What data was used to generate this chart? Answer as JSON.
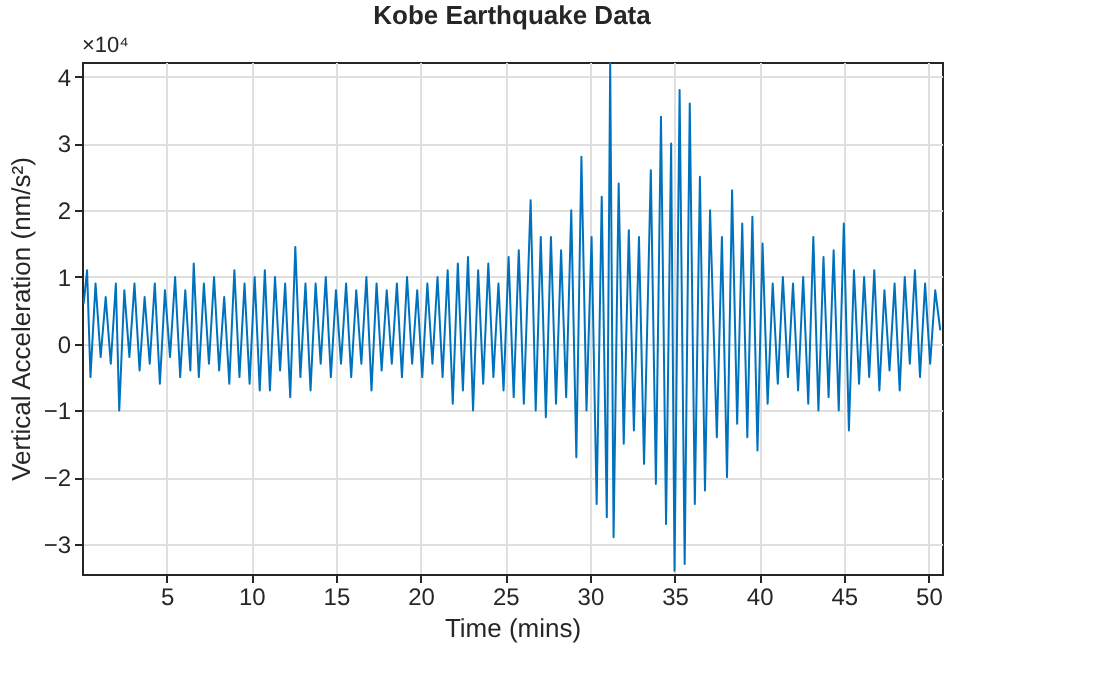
{
  "chart_data": {
    "type": "line",
    "title": "Kobe Earthquake Data",
    "xlabel": "Time (mins)",
    "ylabel": "Vertical Acceleration (nm/s²)",
    "annotations": [
      "×10⁴"
    ],
    "xlim": [
      0,
      50.8
    ],
    "ylim": [
      -3.45,
      4.22
    ],
    "xticks": [
      5,
      10,
      15,
      20,
      25,
      30,
      35,
      40,
      45,
      50
    ],
    "yticks": [
      -3,
      -2,
      -1,
      0,
      1,
      2,
      3,
      4
    ],
    "grid": true,
    "x": [
      0.1,
      0.3,
      0.5,
      0.8,
      1.1,
      1.4,
      1.7,
      2.0,
      2.2,
      2.5,
      2.8,
      3.1,
      3.4,
      3.7,
      4.0,
      4.3,
      4.6,
      4.9,
      5.2,
      5.5,
      5.8,
      6.1,
      6.4,
      6.6,
      6.9,
      7.2,
      7.5,
      7.8,
      8.1,
      8.4,
      8.7,
      9.0,
      9.3,
      9.6,
      9.9,
      10.2,
      10.5,
      10.8,
      11.1,
      11.4,
      11.7,
      12.0,
      12.3,
      12.6,
      12.9,
      13.2,
      13.5,
      13.8,
      14.1,
      14.4,
      14.7,
      15.0,
      15.3,
      15.6,
      15.9,
      16.2,
      16.5,
      16.8,
      17.1,
      17.4,
      17.7,
      18.0,
      18.3,
      18.6,
      18.9,
      19.2,
      19.5,
      19.8,
      20.1,
      20.4,
      20.7,
      21.0,
      21.3,
      21.6,
      21.9,
      22.2,
      22.5,
      22.8,
      23.1,
      23.4,
      23.7,
      24.0,
      24.3,
      24.6,
      24.9,
      25.2,
      25.5,
      25.8,
      26.1,
      26.5,
      26.8,
      27.1,
      27.4,
      27.7,
      28.0,
      28.3,
      28.6,
      28.9,
      29.2,
      29.5,
      29.8,
      30.1,
      30.4,
      30.7,
      31.0,
      31.2,
      31.4,
      31.7,
      32.0,
      32.3,
      32.6,
      32.9,
      33.2,
      33.6,
      33.9,
      34.2,
      34.5,
      34.8,
      35.0,
      35.3,
      35.6,
      35.9,
      36.2,
      36.5,
      36.8,
      37.1,
      37.5,
      37.8,
      38.1,
      38.4,
      38.7,
      39.0,
      39.3,
      39.6,
      39.9,
      40.2,
      40.5,
      40.8,
      41.1,
      41.4,
      41.7,
      42.0,
      42.3,
      42.6,
      42.9,
      43.2,
      43.5,
      43.8,
      44.1,
      44.4,
      44.7,
      45.0,
      45.3,
      45.6,
      45.9,
      46.2,
      46.5,
      46.8,
      47.1,
      47.4,
      47.7,
      48.0,
      48.3,
      48.6,
      48.9,
      49.2,
      49.5,
      49.8,
      50.1,
      50.4,
      50.7
    ],
    "series": [
      {
        "color": "#0072bd",
        "values": [
          0.6,
          1.1,
          -0.5,
          0.9,
          -0.2,
          0.7,
          -0.3,
          0.9,
          -1.0,
          0.8,
          -0.2,
          0.9,
          -0.4,
          0.7,
          -0.3,
          0.9,
          -0.6,
          0.8,
          -0.2,
          1.0,
          -0.5,
          0.8,
          -0.4,
          1.2,
          -0.5,
          0.9,
          -0.3,
          1.0,
          -0.4,
          0.7,
          -0.6,
          1.1,
          -0.5,
          0.9,
          -0.6,
          1.0,
          -0.7,
          1.1,
          -0.7,
          1.0,
          -0.4,
          0.9,
          -0.8,
          1.45,
          -0.5,
          0.9,
          -0.7,
          0.9,
          -0.3,
          1.0,
          -0.5,
          0.8,
          -0.3,
          0.9,
          -0.5,
          0.8,
          -0.3,
          1.0,
          -0.7,
          0.9,
          -0.4,
          0.8,
          -0.3,
          0.9,
          -0.5,
          1.0,
          -0.3,
          0.8,
          -0.5,
          0.9,
          -0.3,
          1.0,
          -0.5,
          1.1,
          -0.9,
          1.2,
          -0.7,
          1.3,
          -1.0,
          1.1,
          -0.6,
          1.2,
          -0.5,
          0.9,
          -0.7,
          1.3,
          -0.8,
          1.4,
          -0.9,
          2.15,
          -1.0,
          1.6,
          -1.1,
          1.6,
          -0.9,
          1.4,
          -0.8,
          2.0,
          -1.7,
          2.8,
          -1.0,
          1.6,
          -2.4,
          2.2,
          -2.6,
          4.2,
          -2.9,
          2.4,
          -1.5,
          1.7,
          -1.3,
          1.6,
          -1.8,
          2.6,
          -2.1,
          3.4,
          -2.7,
          3.0,
          -3.4,
          3.8,
          -3.3,
          3.6,
          -2.4,
          2.5,
          -2.2,
          2.0,
          -1.4,
          1.6,
          -2.0,
          2.3,
          -1.2,
          1.8,
          -1.4,
          1.9,
          -1.6,
          1.5,
          -0.9,
          0.9,
          -0.6,
          1.0,
          -0.5,
          0.9,
          -0.7,
          1.0,
          -0.9,
          1.6,
          -1.0,
          1.3,
          -0.8,
          1.4,
          -1.0,
          1.8,
          -1.3,
          1.1,
          -0.6,
          1.0,
          -0.5,
          1.1,
          -0.7,
          0.8,
          -0.4,
          0.9,
          -0.7,
          1.0,
          -0.3,
          1.1,
          -0.5,
          0.9,
          -0.3,
          0.8,
          0.2
        ]
      }
    ]
  }
}
